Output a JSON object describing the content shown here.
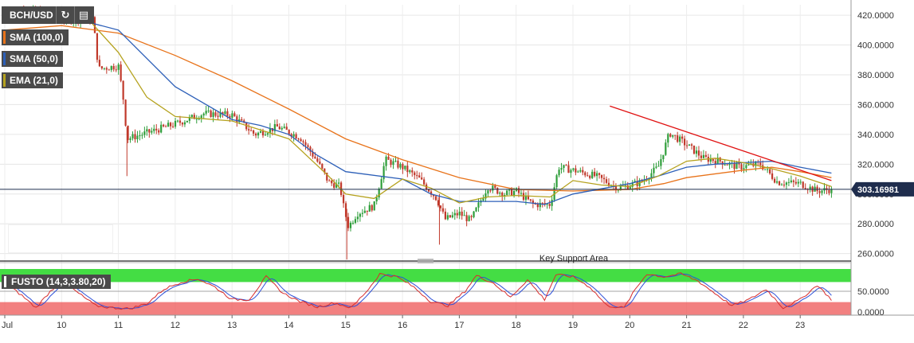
{
  "symbol": "BCH/USD",
  "toolbar": {
    "refresh_icon": "refresh-icon",
    "calendar_icon": "calendar-icon"
  },
  "indicators": [
    {
      "label": "SMA (100,0)",
      "color": "#e8731a"
    },
    {
      "label": "SMA (50,0)",
      "color": "#2c5fb8"
    },
    {
      "label": "EMA (21,0)",
      "color": "#b5a21e"
    }
  ],
  "oscillator": {
    "label": "FUSTO (14,3,3.80,20)",
    "overbought_color": "#44dd44",
    "oversold_color": "#ee5555"
  },
  "annotation": "Key Support Area",
  "last_price": "303.16981",
  "chart_data": {
    "type": "candlestick",
    "x_tick_labels": [
      "Jul",
      "10",
      "11",
      "12",
      "13",
      "14",
      "15",
      "16",
      "17",
      "18",
      "19",
      "20",
      "21",
      "22",
      "23"
    ],
    "price_axis": {
      "ticks": [
        "420.0000",
        "400.0000",
        "380.0000",
        "360.0000",
        "340.0000",
        "320.0000",
        "300.0000",
        "280.0000",
        "260.0000"
      ],
      "range": [
        255,
        427
      ]
    },
    "oscillator_axis": {
      "ticks": [
        "50.0000",
        "0.0000"
      ],
      "range": [
        0,
        100
      ],
      "overbought": 80,
      "oversold": 20
    },
    "anchors": [
      {
        "day": 0.0,
        "price": 420
      },
      {
        "day": 0.4,
        "price": 424
      },
      {
        "day": 0.8,
        "price": 419
      },
      {
        "day": 1.2,
        "price": 417
      },
      {
        "day": 1.55,
        "price": 418
      },
      {
        "day": 1.65,
        "price": 384
      },
      {
        "day": 2.0,
        "price": 386
      },
      {
        "day": 2.1,
        "price": 360
      },
      {
        "day": 2.15,
        "price": 337
      },
      {
        "day": 2.5,
        "price": 341
      },
      {
        "day": 3.0,
        "price": 347
      },
      {
        "day": 3.5,
        "price": 354
      },
      {
        "day": 4.0,
        "price": 353
      },
      {
        "day": 4.4,
        "price": 340
      },
      {
        "day": 4.8,
        "price": 345
      },
      {
        "day": 5.2,
        "price": 338
      },
      {
        "day": 5.5,
        "price": 322
      },
      {
        "day": 5.7,
        "price": 308
      },
      {
        "day": 5.9,
        "price": 305
      },
      {
        "day": 5.97,
        "price": 290
      },
      {
        "day": 6.05,
        "price": 278
      },
      {
        "day": 6.2,
        "price": 287
      },
      {
        "day": 6.5,
        "price": 292
      },
      {
        "day": 6.7,
        "price": 323
      },
      {
        "day": 7.0,
        "price": 318
      },
      {
        "day": 7.3,
        "price": 310
      },
      {
        "day": 7.6,
        "price": 297
      },
      {
        "day": 7.75,
        "price": 283
      },
      {
        "day": 8.0,
        "price": 287
      },
      {
        "day": 8.2,
        "price": 282
      },
      {
        "day": 8.5,
        "price": 305
      },
      {
        "day": 8.8,
        "price": 300
      },
      {
        "day": 9.0,
        "price": 302
      },
      {
        "day": 9.3,
        "price": 293
      },
      {
        "day": 9.6,
        "price": 293
      },
      {
        "day": 9.75,
        "price": 318
      },
      {
        "day": 10.0,
        "price": 316
      },
      {
        "day": 10.4,
        "price": 312
      },
      {
        "day": 10.8,
        "price": 304
      },
      {
        "day": 11.2,
        "price": 308
      },
      {
        "day": 11.5,
        "price": 318
      },
      {
        "day": 11.7,
        "price": 341
      },
      {
        "day": 12.0,
        "price": 333
      },
      {
        "day": 12.3,
        "price": 324
      },
      {
        "day": 12.6,
        "price": 322
      },
      {
        "day": 12.9,
        "price": 318
      },
      {
        "day": 13.3,
        "price": 320
      },
      {
        "day": 13.6,
        "price": 308
      },
      {
        "day": 14.0,
        "price": 307
      },
      {
        "day": 14.3,
        "price": 302
      },
      {
        "day": 14.55,
        "price": 303.17
      }
    ],
    "sma100": [
      {
        "day": 0.0,
        "price": 410
      },
      {
        "day": 1.0,
        "price": 413
      },
      {
        "day": 2.0,
        "price": 408
      },
      {
        "day": 3.0,
        "price": 393
      },
      {
        "day": 4.0,
        "price": 376
      },
      {
        "day": 5.0,
        "price": 357
      },
      {
        "day": 6.0,
        "price": 337
      },
      {
        "day": 7.0,
        "price": 323
      },
      {
        "day": 8.0,
        "price": 311
      },
      {
        "day": 9.0,
        "price": 303
      },
      {
        "day": 10.0,
        "price": 302
      },
      {
        "day": 11.0,
        "price": 303
      },
      {
        "day": 11.6,
        "price": 307
      },
      {
        "day": 12.0,
        "price": 311
      },
      {
        "day": 13.0,
        "price": 316
      },
      {
        "day": 13.5,
        "price": 318
      },
      {
        "day": 14.0,
        "price": 315
      },
      {
        "day": 14.55,
        "price": 311
      }
    ],
    "sma50": [
      {
        "day": 0.0,
        "price": 422
      },
      {
        "day": 1.0,
        "price": 420
      },
      {
        "day": 2.0,
        "price": 410
      },
      {
        "day": 3.0,
        "price": 372
      },
      {
        "day": 4.0,
        "price": 350
      },
      {
        "day": 4.5,
        "price": 346
      },
      {
        "day": 5.0,
        "price": 340
      },
      {
        "day": 5.5,
        "price": 326
      },
      {
        "day": 6.0,
        "price": 315
      },
      {
        "day": 7.0,
        "price": 310
      },
      {
        "day": 7.5,
        "price": 300
      },
      {
        "day": 8.0,
        "price": 295
      },
      {
        "day": 9.0,
        "price": 295
      },
      {
        "day": 9.5,
        "price": 293
      },
      {
        "day": 10.0,
        "price": 300
      },
      {
        "day": 11.0,
        "price": 307
      },
      {
        "day": 11.5,
        "price": 312
      },
      {
        "day": 12.0,
        "price": 318
      },
      {
        "day": 12.5,
        "price": 320
      },
      {
        "day": 13.0,
        "price": 321
      },
      {
        "day": 13.5,
        "price": 322
      },
      {
        "day": 14.0,
        "price": 318
      },
      {
        "day": 14.55,
        "price": 314
      }
    ],
    "ema21": [
      {
        "day": 0.0,
        "price": 418
      },
      {
        "day": 1.5,
        "price": 416
      },
      {
        "day": 2.0,
        "price": 395
      },
      {
        "day": 2.5,
        "price": 365
      },
      {
        "day": 3.0,
        "price": 352
      },
      {
        "day": 4.0,
        "price": 349
      },
      {
        "day": 5.0,
        "price": 337
      },
      {
        "day": 5.7,
        "price": 312
      },
      {
        "day": 6.0,
        "price": 300
      },
      {
        "day": 6.5,
        "price": 297
      },
      {
        "day": 7.0,
        "price": 310
      },
      {
        "day": 7.5,
        "price": 304
      },
      {
        "day": 8.0,
        "price": 294
      },
      {
        "day": 8.5,
        "price": 298
      },
      {
        "day": 9.0,
        "price": 299
      },
      {
        "day": 9.6,
        "price": 298
      },
      {
        "day": 10.0,
        "price": 309
      },
      {
        "day": 10.5,
        "price": 306
      },
      {
        "day": 11.0,
        "price": 305
      },
      {
        "day": 11.5,
        "price": 312
      },
      {
        "day": 12.0,
        "price": 322
      },
      {
        "day": 12.5,
        "price": 324
      },
      {
        "day": 13.0,
        "price": 321
      },
      {
        "day": 13.5,
        "price": 317
      },
      {
        "day": 14.0,
        "price": 312
      },
      {
        "day": 14.55,
        "price": 305
      }
    ],
    "trendline": [
      {
        "day": 10.65,
        "price": 359
      },
      {
        "day": 14.55,
        "price": 309
      }
    ],
    "support_line": 303.17,
    "fusto": [
      {
        "day": 0.0,
        "k": 70
      },
      {
        "day": 0.3,
        "k": 40
      },
      {
        "day": 0.55,
        "k": 10
      },
      {
        "day": 0.8,
        "k": 50
      },
      {
        "day": 1.0,
        "k": 75
      },
      {
        "day": 1.3,
        "k": 45
      },
      {
        "day": 1.6,
        "k": 15
      },
      {
        "day": 1.9,
        "k": 10
      },
      {
        "day": 2.2,
        "k": 8
      },
      {
        "day": 2.5,
        "k": 20
      },
      {
        "day": 2.8,
        "k": 55
      },
      {
        "day": 3.1,
        "k": 72
      },
      {
        "day": 3.4,
        "k": 80
      },
      {
        "day": 3.7,
        "k": 60
      },
      {
        "day": 4.0,
        "k": 30
      },
      {
        "day": 4.3,
        "k": 30
      },
      {
        "day": 4.6,
        "k": 85
      },
      {
        "day": 4.9,
        "k": 45
      },
      {
        "day": 5.2,
        "k": 25
      },
      {
        "day": 5.5,
        "k": 12
      },
      {
        "day": 5.8,
        "k": 22
      },
      {
        "day": 6.1,
        "k": 10
      },
      {
        "day": 6.4,
        "k": 55
      },
      {
        "day": 6.6,
        "k": 92
      },
      {
        "day": 6.9,
        "k": 85
      },
      {
        "day": 7.2,
        "k": 60
      },
      {
        "day": 7.5,
        "k": 25
      },
      {
        "day": 7.8,
        "k": 15
      },
      {
        "day": 8.1,
        "k": 50
      },
      {
        "day": 8.3,
        "k": 88
      },
      {
        "day": 8.6,
        "k": 70
      },
      {
        "day": 8.9,
        "k": 35
      },
      {
        "day": 9.2,
        "k": 78
      },
      {
        "day": 9.5,
        "k": 30
      },
      {
        "day": 9.7,
        "k": 90
      },
      {
        "day": 10.0,
        "k": 85
      },
      {
        "day": 10.3,
        "k": 60
      },
      {
        "day": 10.6,
        "k": 15
      },
      {
        "day": 10.9,
        "k": 10
      },
      {
        "day": 11.1,
        "k": 55
      },
      {
        "day": 11.3,
        "k": 92
      },
      {
        "day": 11.6,
        "k": 85
      },
      {
        "day": 11.9,
        "k": 92
      },
      {
        "day": 12.2,
        "k": 75
      },
      {
        "day": 12.5,
        "k": 45
      },
      {
        "day": 12.8,
        "k": 15
      },
      {
        "day": 13.1,
        "k": 30
      },
      {
        "day": 13.4,
        "k": 55
      },
      {
        "day": 13.7,
        "k": 10
      },
      {
        "day": 14.0,
        "k": 30
      },
      {
        "day": 14.3,
        "k": 65
      },
      {
        "day": 14.55,
        "k": 30
      }
    ]
  }
}
